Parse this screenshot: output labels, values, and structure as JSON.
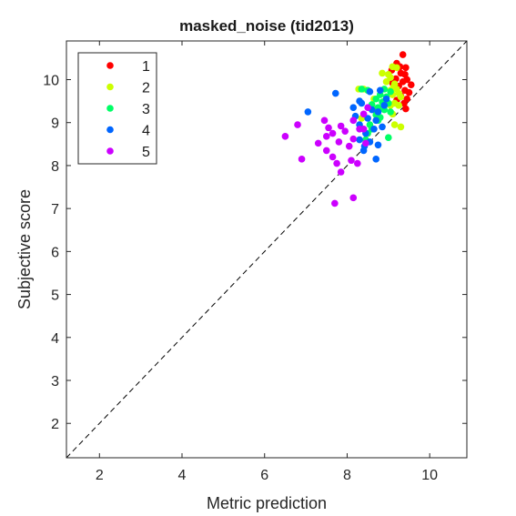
{
  "chart_data": {
    "type": "scatter",
    "title": "masked_noise (tid2013)",
    "xlabel": "Metric prediction",
    "ylabel": "Subjective score",
    "xlim": [
      1.2,
      10.9
    ],
    "ylim": [
      1.2,
      10.9
    ],
    "xticks": [
      "2",
      "4",
      "6",
      "8",
      "10"
    ],
    "yticks": [
      "2",
      "3",
      "4",
      "5",
      "6",
      "7",
      "8",
      "9",
      "10"
    ],
    "grid": false,
    "legend_position": "top-left",
    "reference_line": "y = x (dashed)",
    "series": [
      {
        "name": "1",
        "color": "#ff0000",
        "points": [
          [
            9.35,
            10.58
          ],
          [
            9.2,
            10.38
          ],
          [
            9.28,
            10.3
          ],
          [
            9.42,
            10.28
          ],
          [
            9.08,
            10.22
          ],
          [
            9.3,
            10.15
          ],
          [
            9.4,
            10.12
          ],
          [
            9.18,
            10.02
          ],
          [
            9.45,
            10.0
          ],
          [
            9.35,
            9.95
          ],
          [
            9.1,
            9.92
          ],
          [
            9.55,
            9.88
          ],
          [
            9.25,
            9.85
          ],
          [
            9.4,
            9.75
          ],
          [
            9.5,
            9.7
          ],
          [
            9.3,
            9.62
          ],
          [
            9.45,
            9.55
          ],
          [
            9.2,
            9.52
          ],
          [
            9.38,
            9.45
          ],
          [
            9.42,
            9.32
          ]
        ]
      },
      {
        "name": "2",
        "color": "#ccff00",
        "points": [
          [
            9.1,
            10.3
          ],
          [
            9.2,
            10.28
          ],
          [
            8.85,
            10.15
          ],
          [
            9.0,
            10.12
          ],
          [
            9.05,
            10.05
          ],
          [
            8.95,
            9.95
          ],
          [
            9.15,
            9.9
          ],
          [
            9.12,
            9.82
          ],
          [
            9.2,
            9.78
          ],
          [
            9.05,
            9.75
          ],
          [
            8.28,
            9.78
          ],
          [
            8.4,
            9.78
          ],
          [
            9.25,
            9.68
          ],
          [
            9.1,
            9.65
          ],
          [
            9.3,
            9.6
          ],
          [
            8.65,
            9.55
          ],
          [
            8.9,
            9.5
          ],
          [
            9.15,
            9.45
          ],
          [
            9.05,
            9.4
          ],
          [
            9.25,
            9.4
          ],
          [
            8.7,
            9.32
          ],
          [
            9.1,
            9.2
          ],
          [
            8.35,
            9.1
          ],
          [
            9.3,
            8.9
          ],
          [
            9.15,
            8.95
          ]
        ]
      },
      {
        "name": "3",
        "color": "#00ff66",
        "points": [
          [
            8.35,
            9.78
          ],
          [
            8.5,
            9.75
          ],
          [
            8.9,
            9.78
          ],
          [
            9.05,
            9.72
          ],
          [
            8.8,
            9.65
          ],
          [
            8.95,
            9.6
          ],
          [
            8.7,
            9.55
          ],
          [
            8.85,
            9.48
          ],
          [
            9.0,
            9.45
          ],
          [
            8.6,
            9.42
          ],
          [
            8.75,
            9.35
          ],
          [
            8.9,
            9.3
          ],
          [
            9.05,
            9.25
          ],
          [
            8.7,
            9.18
          ],
          [
            8.8,
            9.12
          ],
          [
            8.75,
            9.05
          ],
          [
            8.55,
            8.95
          ],
          [
            8.6,
            8.85
          ],
          [
            8.5,
            8.75
          ],
          [
            9.0,
            8.65
          ],
          [
            8.45,
            8.6
          ]
        ]
      },
      {
        "name": "4",
        "color": "#0066ff",
        "points": [
          [
            7.72,
            9.68
          ],
          [
            7.05,
            9.25
          ],
          [
            8.15,
            9.35
          ],
          [
            8.55,
            9.72
          ],
          [
            8.8,
            9.75
          ],
          [
            8.95,
            9.55
          ],
          [
            8.35,
            9.45
          ],
          [
            8.6,
            9.3
          ],
          [
            8.75,
            9.25
          ],
          [
            8.2,
            9.15
          ],
          [
            8.5,
            9.1
          ],
          [
            8.7,
            9.05
          ],
          [
            8.3,
            8.95
          ],
          [
            8.85,
            8.9
          ],
          [
            8.65,
            8.85
          ],
          [
            8.45,
            8.75
          ],
          [
            8.3,
            8.6
          ],
          [
            8.55,
            8.55
          ],
          [
            8.75,
            8.48
          ],
          [
            8.42,
            8.45
          ],
          [
            8.4,
            8.35
          ],
          [
            8.7,
            8.15
          ],
          [
            8.3,
            9.5
          ],
          [
            8.9,
            9.4
          ]
        ]
      },
      {
        "name": "5",
        "color": "#cc00ff",
        "points": [
          [
            6.5,
            8.68
          ],
          [
            6.8,
            8.95
          ],
          [
            7.45,
            9.05
          ],
          [
            7.55,
            8.88
          ],
          [
            7.85,
            8.92
          ],
          [
            8.15,
            9.05
          ],
          [
            8.4,
            9.2
          ],
          [
            8.5,
            9.35
          ],
          [
            7.65,
            8.75
          ],
          [
            7.95,
            8.8
          ],
          [
            8.3,
            8.85
          ],
          [
            7.5,
            8.68
          ],
          [
            8.15,
            8.62
          ],
          [
            7.3,
            8.52
          ],
          [
            7.8,
            8.55
          ],
          [
            8.45,
            8.52
          ],
          [
            8.05,
            8.45
          ],
          [
            7.5,
            8.35
          ],
          [
            7.65,
            8.2
          ],
          [
            7.75,
            8.05
          ],
          [
            8.1,
            8.12
          ],
          [
            8.25,
            8.05
          ],
          [
            6.9,
            8.15
          ],
          [
            7.85,
            7.85
          ],
          [
            8.15,
            7.25
          ],
          [
            7.7,
            7.12
          ],
          [
            8.4,
            8.85
          ]
        ]
      }
    ]
  }
}
